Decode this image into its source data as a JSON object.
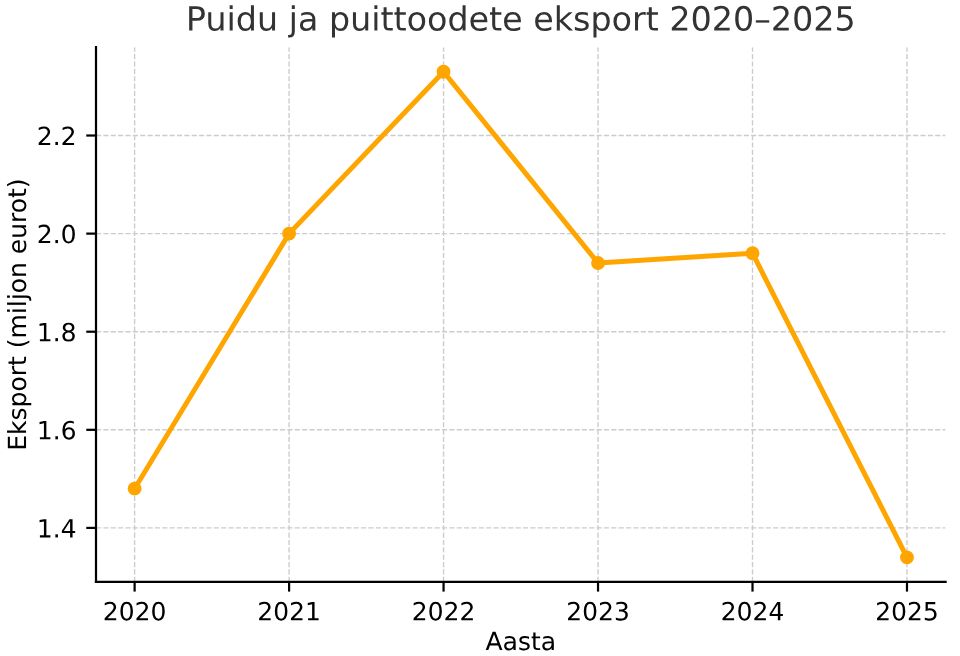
{
  "chart_data": {
    "type": "line",
    "title": "Puidu ja puittoodete eksport 2020–2025",
    "xlabel": "Aasta",
    "ylabel": "Eksport (miljon eurot)",
    "x": [
      2020,
      2021,
      2022,
      2023,
      2024,
      2025
    ],
    "series": [
      {
        "color": "#ffa500",
        "values": [
          1.48,
          2.0,
          2.33,
          1.94,
          1.96,
          1.34
        ]
      }
    ],
    "xlim": [
      2019.75,
      2025.25
    ],
    "xticks": [
      2020,
      2021,
      2022,
      2023,
      2024,
      2025
    ],
    "ylim": [
      1.29,
      2.38
    ],
    "yticks": [
      {
        "value": 1.4,
        "label": "1.4"
      },
      {
        "value": 1.6,
        "label": "1.6"
      },
      {
        "value": 1.8,
        "label": "1.8"
      },
      {
        "value": 2.0,
        "label": "2.0"
      },
      {
        "value": 2.2,
        "label": "2.2"
      }
    ],
    "grid": true,
    "marker": "circle",
    "line_style": "solid"
  }
}
